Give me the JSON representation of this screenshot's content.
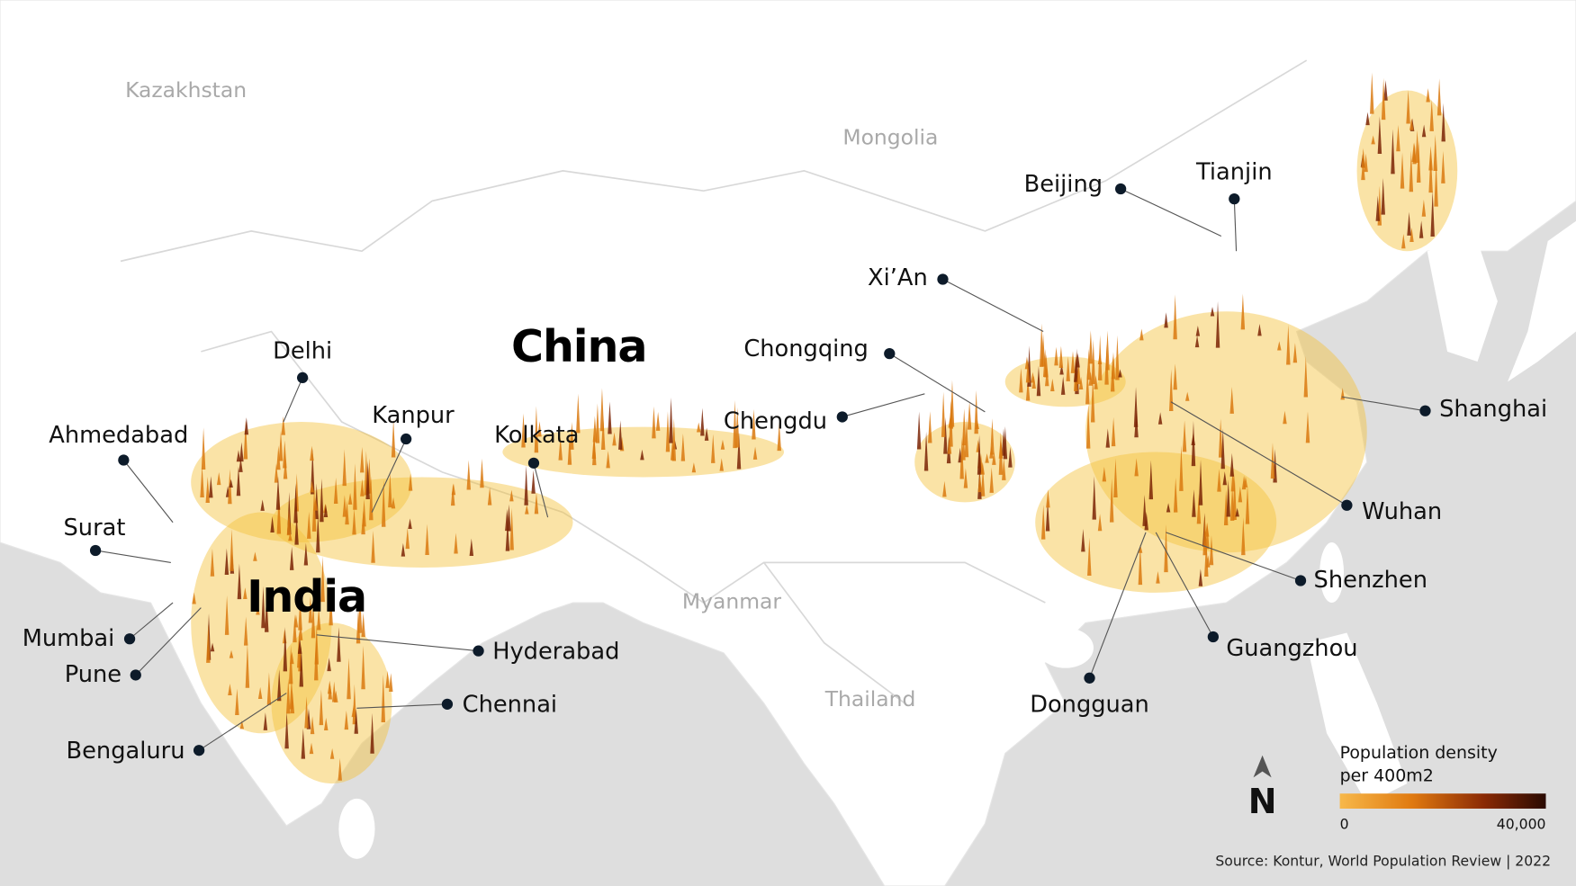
{
  "countries": [
    {
      "label": "Kazakhstan"
    },
    {
      "label": "Mongolia"
    },
    {
      "label": "Myanmar"
    },
    {
      "label": "Thailand"
    },
    {
      "label": "China"
    },
    {
      "label": "India"
    }
  ],
  "cities": [
    {
      "label": "Beijing"
    },
    {
      "label": "Tianjin"
    },
    {
      "label": "Xi’An"
    },
    {
      "label": "Chongqing"
    },
    {
      "label": "Chengdu"
    },
    {
      "label": "Shanghai"
    },
    {
      "label": "Wuhan"
    },
    {
      "label": "Shenzhen"
    },
    {
      "label": "Guangzhou"
    },
    {
      "label": "Dongguan"
    },
    {
      "label": "Delhi"
    },
    {
      "label": "Kanpur"
    },
    {
      "label": "Kolkata"
    },
    {
      "label": "Ahmedabad"
    },
    {
      "label": "Surat"
    },
    {
      "label": "Mumbai"
    },
    {
      "label": "Pune"
    },
    {
      "label": "Hyderabad"
    },
    {
      "label": "Chennai"
    },
    {
      "label": "Bengaluru"
    }
  ],
  "legend": {
    "title": [
      "Population density",
      "per 400m2"
    ],
    "ticks": [
      0,
      {
        "value": 40000,
        "label": "40,000"
      }
    ]
  },
  "north": "N",
  "source": "Source: Kontur, World Population Review | 2022"
}
